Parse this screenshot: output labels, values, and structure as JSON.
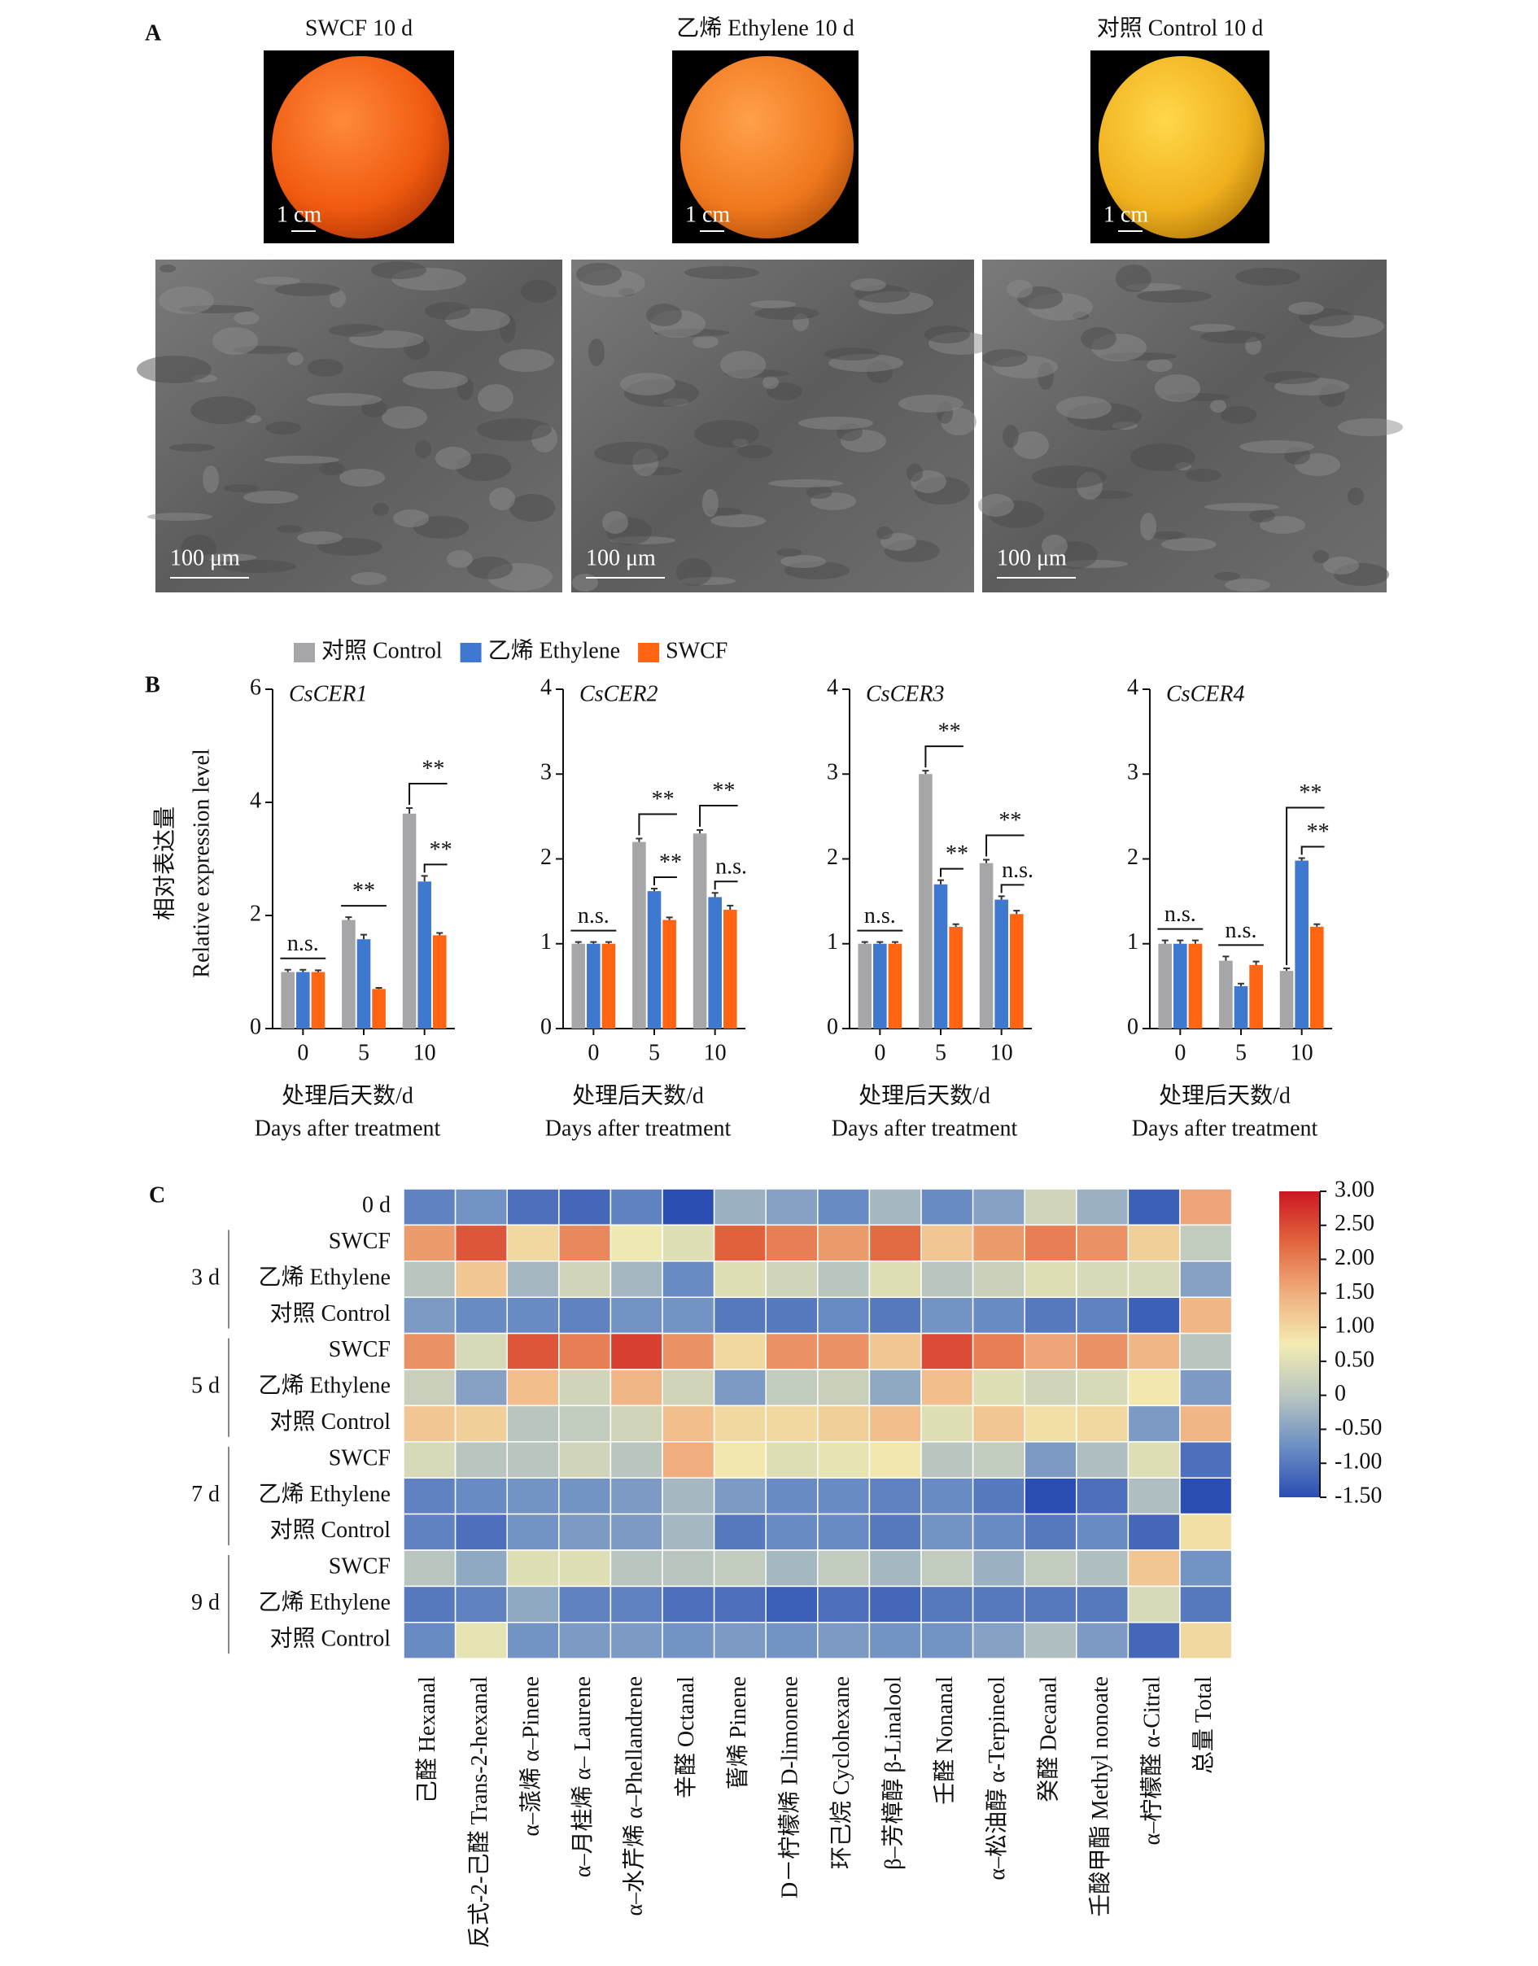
{
  "panel_labels": [
    "A",
    "B",
    "C"
  ],
  "panel_a": {
    "labels": [
      "SWCF 10 d",
      "乙烯 Ethylene 10 d",
      "对照 Control 10 d"
    ],
    "photo_scale": [
      "1 cm",
      "1 cm",
      "1 cm"
    ],
    "sem_scale": [
      "100 μm",
      "100 μm",
      "100 μm"
    ]
  },
  "chart_data": [
    {
      "type": "bar",
      "title": "CsCER1",
      "ylabel": [
        "相对表达量",
        "Relative expression level"
      ],
      "xlabel": [
        "处理后天数/d",
        "Days after treatment"
      ],
      "categories": [
        "0",
        "5",
        "10"
      ],
      "series": [
        {
          "name": "对照 Control",
          "color": "#a6a6a8",
          "values": [
            1.0,
            1.92,
            3.8
          ],
          "errors": [
            0.04,
            0.05,
            0.1
          ]
        },
        {
          "name": "乙烯 Ethylene",
          "color": "#3f78cf",
          "values": [
            1.0,
            1.58,
            2.6
          ],
          "errors": [
            0.04,
            0.08,
            0.1
          ]
        },
        {
          "name": "SWCF",
          "color": "#ff6410",
          "values": [
            1.0,
            0.7,
            1.65
          ],
          "errors": [
            0.03,
            0.02,
            0.04
          ]
        }
      ],
      "annotations": [
        [
          "n.s."
        ],
        [
          "**"
        ],
        [
          "**",
          "**"
        ]
      ],
      "ylim": [
        0,
        6
      ],
      "yticks": [
        0,
        2,
        4,
        6
      ]
    },
    {
      "type": "bar",
      "title": "CsCER2",
      "xlabel": [
        "处理后天数/d",
        "Days after treatment"
      ],
      "categories": [
        "0",
        "5",
        "10"
      ],
      "series": [
        {
          "color": "#a6a6a8",
          "values": [
            1.0,
            2.2,
            2.3
          ],
          "errors": [
            0.02,
            0.04,
            0.04
          ]
        },
        {
          "color": "#3f78cf",
          "values": [
            1.0,
            1.62,
            1.55
          ],
          "errors": [
            0.02,
            0.03,
            0.05
          ]
        },
        {
          "color": "#ff6410",
          "values": [
            1.0,
            1.28,
            1.4
          ],
          "errors": [
            0.02,
            0.03,
            0.05
          ]
        }
      ],
      "annotations": [
        [
          "n.s."
        ],
        [
          "**",
          "**"
        ],
        [
          "**",
          "n.s."
        ]
      ],
      "ylim": [
        0,
        4
      ],
      "yticks": [
        0,
        1,
        2,
        3,
        4
      ]
    },
    {
      "type": "bar",
      "title": "CsCER3",
      "xlabel": [
        "处理后天数/d",
        "Days after treatment"
      ],
      "categories": [
        "0",
        "5",
        "10"
      ],
      "series": [
        {
          "color": "#a6a6a8",
          "values": [
            1.0,
            3.0,
            1.95
          ],
          "errors": [
            0.02,
            0.04,
            0.04
          ]
        },
        {
          "color": "#3f78cf",
          "values": [
            1.0,
            1.7,
            1.52
          ],
          "errors": [
            0.02,
            0.05,
            0.04
          ]
        },
        {
          "color": "#ff6410",
          "values": [
            1.0,
            1.2,
            1.35
          ],
          "errors": [
            0.02,
            0.03,
            0.04
          ]
        }
      ],
      "annotations": [
        [
          "n.s."
        ],
        [
          "**",
          "**"
        ],
        [
          "**",
          "n.s."
        ]
      ],
      "ylim": [
        0,
        4
      ],
      "yticks": [
        0,
        1,
        2,
        3,
        4
      ]
    },
    {
      "type": "bar",
      "title": "CsCER4",
      "xlabel": [
        "处理后天数/d",
        "Days after treatment"
      ],
      "categories": [
        "0",
        "5",
        "10"
      ],
      "series": [
        {
          "color": "#a6a6a8",
          "values": [
            1.0,
            0.8,
            0.68
          ],
          "errors": [
            0.04,
            0.05,
            0.03
          ]
        },
        {
          "color": "#3f78cf",
          "values": [
            1.0,
            0.5,
            1.98
          ],
          "errors": [
            0.04,
            0.03,
            0.03
          ]
        },
        {
          "color": "#ff6410",
          "values": [
            1.0,
            0.75,
            1.2
          ],
          "errors": [
            0.04,
            0.04,
            0.03
          ]
        }
      ],
      "annotations": [
        [
          "n.s."
        ],
        [
          "n.s."
        ],
        [
          "**",
          "**"
        ]
      ],
      "ylim": [
        0,
        4
      ],
      "yticks": [
        0,
        1,
        2,
        3,
        4
      ]
    },
    {
      "type": "heatmap",
      "columns": [
        "己醛 Hexanal",
        "反式-2-己醛 Trans-2-hexanal",
        "α–蒎烯 α–Pinene",
        "α–月桂烯 α– Laurene",
        "α–水芹烯 α–Phellandrene",
        "辛醛 Octanal",
        "蒈烯 Pinene",
        "D－柠檬烯 D-limonene",
        "环己烷 Cyclohexane",
        "β–芳樟醇 β-Linalool",
        "壬醛 Nonanal",
        "α–松油醇 α-Terpineol",
        "癸醛 Decanal",
        "壬酸甲酯 Methyl nonoate",
        "α–柠檬醛 α-Citral",
        "总量 Total"
      ],
      "rows": [
        {
          "label": "0 d",
          "values": [
            -0.9,
            -0.7,
            -1.1,
            -1.2,
            -0.9,
            -1.5,
            -0.3,
            -0.5,
            -0.8,
            -0.2,
            -0.8,
            -0.5,
            0.3,
            -0.3,
            -1.3,
            1.6
          ]
        }
      ],
      "groups": [
        {
          "name": "3 d",
          "rows": [
            {
              "label": "SWCF",
              "values": [
                1.7,
                2.4,
                1.0,
                1.9,
                0.7,
                0.5,
                2.3,
                2.0,
                1.7,
                2.2,
                1.2,
                1.7,
                2.0,
                1.8,
                1.1,
                0.1
              ]
            },
            {
              "label": "乙烯 Ethylene",
              "values": [
                0.0,
                1.2,
                -0.2,
                0.3,
                -0.2,
                -0.8,
                0.5,
                0.3,
                0.0,
                0.5,
                0.0,
                0.2,
                0.5,
                0.4,
                0.4,
                -0.5
              ]
            },
            {
              "label": "对照 Control",
              "values": [
                -0.6,
                -0.8,
                -0.8,
                -0.9,
                -0.7,
                -0.7,
                -1.0,
                -1.0,
                -0.8,
                -1.0,
                -0.7,
                -0.8,
                -1.0,
                -0.9,
                -1.3,
                1.4
              ]
            }
          ]
        },
        {
          "name": "5 d",
          "rows": [
            {
              "label": "SWCF",
              "values": [
                1.8,
                0.4,
                2.4,
                2.0,
                2.6,
                1.8,
                1.0,
                1.8,
                1.8,
                1.2,
                2.5,
                2.0,
                1.6,
                1.8,
                1.4,
                0.0
              ]
            },
            {
              "label": "乙烯 Ethylene",
              "values": [
                0.2,
                -0.5,
                1.3,
                0.3,
                1.4,
                0.3,
                -0.6,
                0.1,
                0.2,
                -0.4,
                1.3,
                0.5,
                0.3,
                0.4,
                0.8,
                -0.6
              ]
            },
            {
              "label": "对照 Control",
              "values": [
                1.2,
                1.1,
                0.0,
                0.1,
                0.3,
                1.3,
                1.0,
                1.0,
                1.1,
                1.3,
                0.5,
                1.2,
                0.9,
                1.0,
                -0.6,
                1.4
              ]
            }
          ]
        },
        {
          "name": "7 d",
          "rows": [
            {
              "label": "SWCF",
              "values": [
                0.4,
                0.0,
                0.0,
                0.3,
                0.0,
                1.5,
                0.8,
                0.5,
                0.6,
                0.8,
                0.0,
                0.1,
                -0.6,
                -0.1,
                0.5,
                -1.1
              ]
            },
            {
              "label": "乙烯 Ethylene",
              "values": [
                -0.9,
                -0.8,
                -0.7,
                -0.7,
                -0.6,
                -0.2,
                -0.6,
                -0.8,
                -0.8,
                -0.9,
                -0.8,
                -1.0,
                -1.5,
                -1.1,
                -0.1,
                -1.5
              ]
            },
            {
              "label": "对照 Control",
              "values": [
                -0.9,
                -1.1,
                -0.7,
                -0.6,
                -0.6,
                -0.2,
                -1.0,
                -0.8,
                -0.8,
                -1.0,
                -0.7,
                -0.8,
                -1.0,
                -0.8,
                -1.2,
                0.9
              ]
            }
          ]
        },
        {
          "name": "9 d",
          "rows": [
            {
              "label": "SWCF",
              "values": [
                0.0,
                -0.4,
                0.5,
                0.5,
                0.0,
                0.0,
                0.1,
                -0.2,
                0.1,
                -0.2,
                0.1,
                -0.3,
                0.1,
                -0.1,
                1.2,
                -0.7
              ]
            },
            {
              "label": "乙烯 Ethylene",
              "values": [
                -1.0,
                -0.9,
                -0.4,
                -0.9,
                -0.9,
                -1.1,
                -1.1,
                -1.3,
                -1.1,
                -1.2,
                -1.0,
                -1.0,
                -1.0,
                -1.0,
                0.4,
                -1.0
              ]
            },
            {
              "label": "对照 Control",
              "values": [
                -0.8,
                0.6,
                -0.7,
                -0.6,
                -0.6,
                -0.7,
                -0.6,
                -0.7,
                -0.6,
                -0.7,
                -0.7,
                -0.5,
                -0.1,
                -0.6,
                -1.2,
                1.0
              ]
            }
          ]
        }
      ],
      "colors": [
        "#2a4db3",
        "#6d8fc4",
        "#b9c6c0",
        "#f2ebb1",
        "#f0ae7e",
        "#e2663f",
        "#cc1622"
      ],
      "zlim": [
        -1.5,
        3
      ],
      "zticks": [
        {
          "value": 3,
          "label": "3.00"
        },
        {
          "value": 2.5,
          "label": "2.50"
        },
        {
          "value": 2,
          "label": "2.00"
        },
        {
          "value": 1.5,
          "label": "1.50"
        },
        {
          "value": 1,
          "label": "1.00"
        },
        {
          "value": 0.5,
          "label": "0.50"
        },
        0,
        {
          "value": -0.5,
          "label": "-0.50"
        },
        {
          "value": -1,
          "label": "-1.00"
        },
        {
          "value": -1.5,
          "label": "-1.50"
        }
      ]
    }
  ]
}
